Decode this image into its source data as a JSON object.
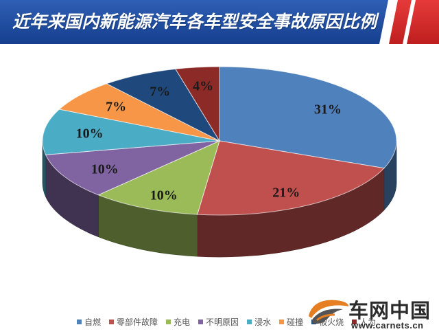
{
  "header": {
    "title": "近年来国内新能源汽车各车型安全事故原因比例",
    "band_colors": [
      "#1f4b9f",
      "#d92b2b",
      "#ffffff"
    ]
  },
  "chart_data": {
    "type": "pie",
    "title": "近年来国内新能源汽车各车型安全事故原因比例",
    "labels": [
      "自燃",
      "零部件故障",
      "充电",
      "不明原因",
      "浸水",
      "碰撞",
      "被火烧",
      "人为"
    ],
    "values": [
      31,
      21,
      10,
      10,
      10,
      7,
      7,
      4
    ],
    "value_labels": [
      "31%",
      "21%",
      "10%",
      "10%",
      "10%",
      "7%",
      "7%",
      "4%"
    ],
    "colors": [
      "#4f81bd",
      "#c0504d",
      "#9bbb59",
      "#8064a2",
      "#4bacc6",
      "#f79646",
      "#1f497d",
      "#8b2a27"
    ],
    "legend_position": "bottom",
    "grid": false,
    "three_d": true
  },
  "legend": {
    "items": [
      {
        "label": "自燃",
        "color": "#4f81bd"
      },
      {
        "label": "零部件故障",
        "color": "#c0504d"
      },
      {
        "label": "充电",
        "color": "#9bbb59"
      },
      {
        "label": "不明原因",
        "color": "#8064a2"
      },
      {
        "label": "浸水",
        "color": "#4bacc6"
      },
      {
        "label": "碰撞",
        "color": "#f79646"
      },
      {
        "label": "被火烧",
        "color": "#1f497d"
      },
      {
        "label": "人为",
        "color": "#8b2a27"
      }
    ]
  },
  "watermark": {
    "brand_cn": "车网中国",
    "url": "www.carnets.cn",
    "logo_icon": "car-logo-icon",
    "colors": [
      "#e67e22",
      "#555555"
    ]
  }
}
